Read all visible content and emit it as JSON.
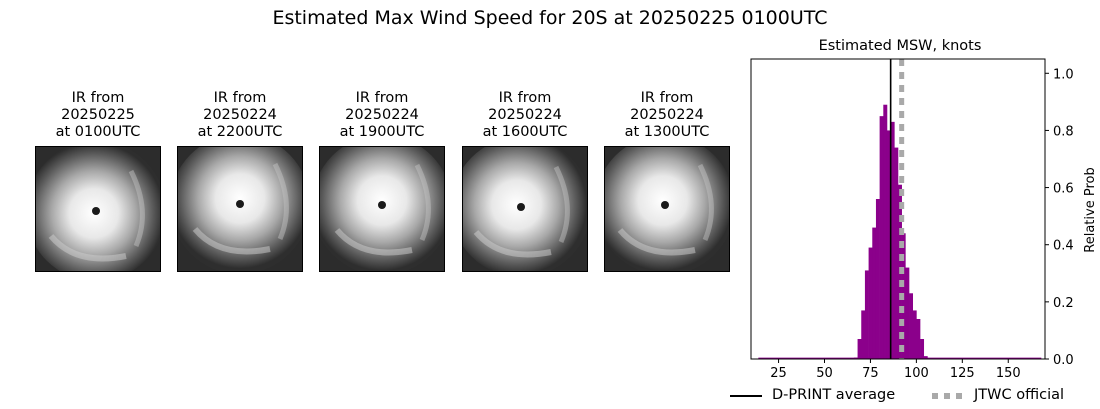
{
  "figure": {
    "title": "Estimated Max Wind Speed for 20S at 20250225 0100UTC"
  },
  "ir_panels": [
    {
      "line1": "IR from",
      "line2": "20250225",
      "line3": "at 0100UTC"
    },
    {
      "line1": "IR from",
      "line2": "20250224",
      "line3": "at 2200UTC"
    },
    {
      "line1": "IR from",
      "line2": "20250224",
      "line3": "at 1900UTC"
    },
    {
      "line1": "IR from",
      "line2": "20250224",
      "line3": "at 1600UTC"
    },
    {
      "line1": "IR from",
      "line2": "20250224",
      "line3": "at 1300UTC"
    }
  ],
  "chart_data": {
    "type": "bar",
    "title": "Estimated MSW, knots",
    "xlabel": "",
    "ylabel": "Relative Prob",
    "xlim": [
      10,
      170
    ],
    "ylim": [
      0,
      1.05
    ],
    "xticks": [
      25,
      50,
      75,
      100,
      125,
      150
    ],
    "yticks": [
      0.0,
      0.2,
      0.4,
      0.6,
      0.8,
      1.0
    ],
    "ytick_labels": [
      "0.0",
      "0.2",
      "0.4",
      "0.6",
      "0.8",
      "1.0"
    ],
    "bin_width": 2,
    "bars_x": [
      67,
      69,
      71,
      73,
      75,
      77,
      79,
      81,
      83,
      85,
      87,
      89,
      91,
      93,
      95,
      97,
      99,
      101,
      103,
      105
    ],
    "bars_y": [
      0.005,
      0.07,
      0.17,
      0.31,
      0.39,
      0.46,
      0.56,
      0.85,
      0.89,
      0.8,
      0.83,
      0.74,
      0.61,
      0.44,
      0.32,
      0.23,
      0.17,
      0.14,
      0.07,
      0.01
    ],
    "baseline_from": 14,
    "baseline_to": 168,
    "bar_color": "#8b008b",
    "dprint_average": 86,
    "jtwc_official": 92,
    "legend": [
      {
        "label": "D-PRINT average",
        "color": "#000000",
        "style": "solid"
      },
      {
        "label": "JTWC official",
        "color": "#a9a9a9",
        "style": "dotted"
      }
    ],
    "legend_position": "bottom"
  }
}
